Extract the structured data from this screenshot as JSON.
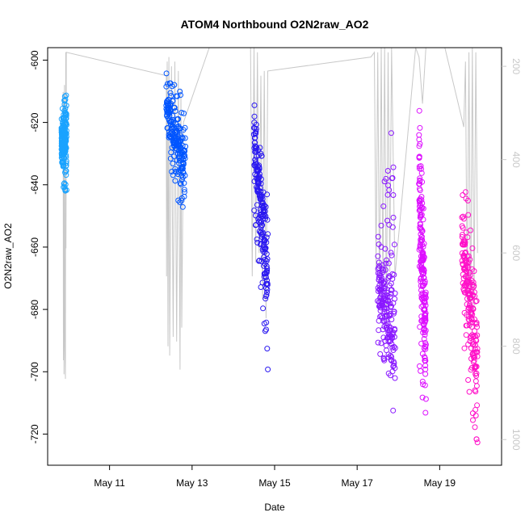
{
  "chart_data": {
    "type": "scatter",
    "title": "ATOM4 Northbound O2N2raw_AO2",
    "xlabel": "Date",
    "ylabel": "O2N2raw_AO2",
    "x_ticks": [
      "May 11",
      "May 13",
      "May 15",
      "May 17",
      "May 19"
    ],
    "y_ticks": [
      -600,
      -620,
      -640,
      -660,
      -680,
      -700,
      -720
    ],
    "y_right_ticks": [
      200,
      400,
      600,
      800,
      1000
    ],
    "xlim": [
      "2019-05-09 12:00",
      "2019-05-20 12:00"
    ],
    "ylim": [
      -730,
      -596
    ],
    "ylim_right": [
      1055,
      160
    ],
    "right_axis_color": "#c8c8c8",
    "grid": false,
    "series": [
      {
        "color": "#1aa3ff",
        "x": [
          "2019-05-09 20:00",
          "2019-05-09 23:00"
        ],
        "y_center": [
          -628,
          -622
        ],
        "y_spread": [
          [
            -640,
            -616
          ],
          [
            -648,
            -605
          ]
        ]
      },
      {
        "color": "#0055ff",
        "x": [
          "2019-05-12 09:00",
          "2019-05-12 20:00"
        ],
        "y_center": [
          -615,
          -635
        ],
        "y_spread": [
          [
            -628,
            -603
          ],
          [
            -655,
            -612
          ]
        ]
      },
      {
        "color": "#2a18f0",
        "x": [
          "2019-05-14 12:00",
          "2019-05-14 20:00"
        ],
        "y_center": [
          -625,
          -672
        ],
        "y_spread": [
          [
            -650,
            -610
          ],
          [
            -700,
            -645
          ]
        ]
      },
      {
        "color": "#8a18ff",
        "x": [
          "2019-05-17 12:00",
          "2019-05-17 22:00"
        ],
        "y_center": [
          -672,
          -688
        ],
        "y_spread": [
          [
            -692,
            -655
          ],
          [
            -710,
            -615
          ]
        ]
      },
      {
        "color": "#dd10ff",
        "x": [
          "2019-05-18 12:00",
          "2019-05-18 16:00"
        ],
        "y_center": [
          -640,
          -690
        ],
        "y_spread": [
          [
            -700,
            -615
          ],
          [
            -720,
            -660
          ]
        ]
      },
      {
        "color": "#ff10c8",
        "x": [
          "2019-05-19 13:00",
          "2019-05-19 22:00"
        ],
        "y_center": [
          -660,
          -695
        ],
        "y_spread": [
          [
            -690,
            -620
          ],
          [
            -727,
            -670
          ]
        ]
      }
    ],
    "pressure_trace": {
      "color": "#c8c8c8",
      "points": [
        [
          "2019-05-09 21:00",
          255
        ],
        [
          "2019-05-09 21:10",
          830
        ],
        [
          "2019-05-09 21:20",
          280
        ],
        [
          "2019-05-09 21:30",
          860
        ],
        [
          "2019-05-09 21:45",
          240
        ],
        [
          "2019-05-09 22:00",
          800
        ],
        [
          "2019-05-09 22:20",
          870
        ],
        [
          "2019-05-09 22:30",
          170
        ],
        [
          "2019-05-09 22:40",
          590
        ],
        [
          "2019-05-09 22:50",
          170
        ],
        [
          "2019-05-12 09:00",
          220
        ],
        [
          "2019-05-12 09:10",
          650
        ],
        [
          "2019-05-12 09:30",
          190
        ],
        [
          "2019-05-12 10:00",
          800
        ],
        [
          "2019-05-12 10:30",
          180
        ],
        [
          "2019-05-12 11:00",
          820
        ],
        [
          "2019-05-12 12:00",
          200
        ],
        [
          "2019-05-12 13:00",
          780
        ],
        [
          "2019-05-12 14:00",
          190
        ],
        [
          "2019-05-12 15:00",
          790
        ],
        [
          "2019-05-12 16:00",
          210
        ],
        [
          "2019-05-12 17:00",
          850
        ],
        [
          "2019-05-12 17:30",
          250
        ],
        [
          "2019-05-12 18:00",
          760
        ],
        [
          "2019-05-12 19:00",
          320
        ],
        [
          "2019-05-13 10:00",
          150
        ],
        [
          "2019-05-14 10:00",
          150
        ],
        [
          "2019-05-14 11:00",
          650
        ],
        [
          "2019-05-14 12:00",
          160
        ],
        [
          "2019-05-14 13:00",
          620
        ],
        [
          "2019-05-14 14:00",
          170
        ],
        [
          "2019-05-14 15:00",
          600
        ],
        [
          "2019-05-14 16:00",
          220
        ],
        [
          "2019-05-14 17:00",
          700
        ],
        [
          "2019-05-14 18:00",
          210
        ],
        [
          "2019-05-14 19:00",
          740
        ],
        [
          "2019-05-14 20:00",
          210
        ],
        [
          "2019-05-17 08:00",
          180
        ],
        [
          "2019-05-17 10:00",
          170
        ],
        [
          "2019-05-17 11:00",
          640
        ],
        [
          "2019-05-17 12:00",
          170
        ],
        [
          "2019-05-17 13:00",
          720
        ],
        [
          "2019-05-17 14:00",
          160
        ],
        [
          "2019-05-17 15:00",
          680
        ],
        [
          "2019-05-17 16:00",
          160
        ],
        [
          "2019-05-17 17:00",
          760
        ],
        [
          "2019-05-17 18:00",
          170
        ],
        [
          "2019-05-17 19:00",
          640
        ],
        [
          "2019-05-17 20:00",
          160
        ],
        [
          "2019-05-17 22:00",
          650
        ],
        [
          "2019-05-18 10:00",
          160
        ],
        [
          "2019-05-18 12:00",
          180
        ],
        [
          "2019-05-18 14:00",
          280
        ],
        [
          "2019-05-18 16:00",
          160
        ],
        [
          "2019-05-19 03:00",
          150
        ],
        [
          "2019-05-19 14:00",
          330
        ],
        [
          "2019-05-19 15:00",
          190
        ],
        [
          "2019-05-19 16:00",
          700
        ],
        [
          "2019-05-19 17:00",
          170
        ],
        [
          "2019-05-19 18:00",
          760
        ],
        [
          "2019-05-19 19:00",
          160
        ],
        [
          "2019-05-19 20:00",
          720
        ],
        [
          "2019-05-19 21:00",
          170
        ],
        [
          "2019-05-19 22:00",
          600
        ]
      ]
    }
  }
}
